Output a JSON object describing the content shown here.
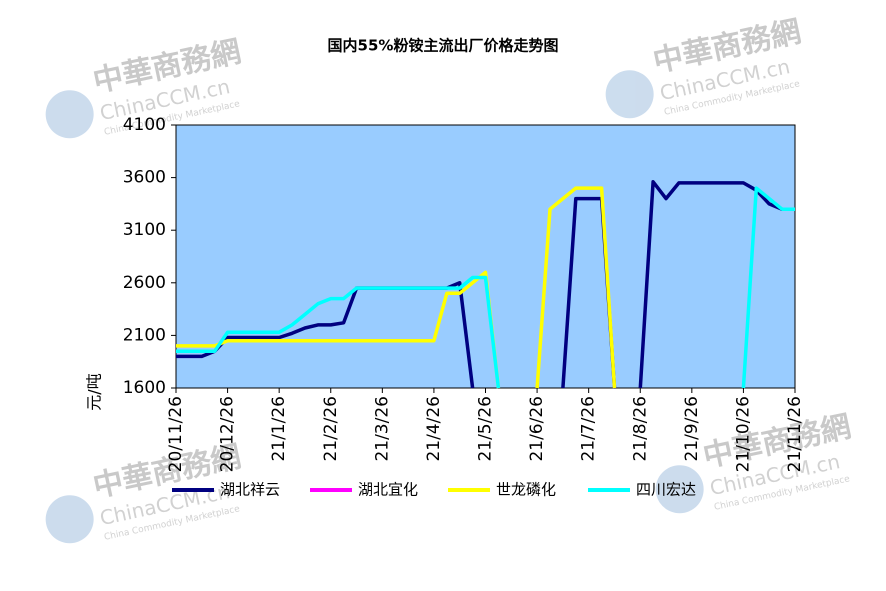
{
  "chart_data": {
    "type": "line",
    "title": "国内55%粉铵主流出厂价格走势图",
    "y_label": "元/吨",
    "watermark": {
      "name": "中華商務網",
      "site": "ChinaCCM.cn",
      "tagline": "China Commodity Marketplace"
    },
    "categories": [
      "20/11/26",
      null,
      null,
      null,
      "20/12/26",
      null,
      null,
      null,
      "21/1/26",
      null,
      null,
      null,
      "21/2/26",
      null,
      null,
      null,
      "21/3/26",
      null,
      null,
      null,
      "21/4/26",
      null,
      null,
      null,
      "21/5/26",
      null,
      null,
      null,
      "21/6/26",
      null,
      null,
      null,
      "21/7/26",
      null,
      null,
      null,
      "21/8/26",
      null,
      null,
      null,
      "21/9/26",
      null,
      null,
      null,
      "21/10/26",
      null,
      null,
      null,
      "21/11/26"
    ],
    "ylim": [
      1600,
      4100
    ],
    "yticks": [
      1600,
      2100,
      2600,
      3100,
      3600,
      4100
    ],
    "grid": false,
    "plot_color": "#99ccff",
    "series": [
      {
        "name": "湖北祥云",
        "color": "#000080",
        "values": [
          1900,
          1900,
          1900,
          1950,
          2080,
          2080,
          2080,
          2080,
          2080,
          2120,
          2170,
          2200,
          2200,
          2220,
          2550,
          2550,
          2550,
          2550,
          2550,
          2550,
          2550,
          2550,
          2600,
          1600,
          null,
          null,
          null,
          null,
          null,
          null,
          1600,
          3400,
          3400,
          3400,
          1600,
          null,
          1600,
          3560,
          3400,
          3550,
          3550,
          3550,
          3550,
          3550,
          3550,
          3480,
          3350,
          3300,
          3300
        ]
      },
      {
        "name": "湖北宜化",
        "color": "#ff00ff",
        "values": [
          null,
          null,
          null,
          null,
          null,
          null,
          null,
          null,
          null,
          null,
          null,
          null,
          null,
          null,
          null,
          null,
          null,
          null,
          null,
          null,
          null,
          null,
          null,
          null,
          null,
          null,
          null,
          null,
          null,
          null,
          null,
          null,
          null,
          null,
          null,
          null,
          null,
          null,
          null,
          null,
          null,
          null,
          null,
          null,
          null,
          null,
          null,
          null,
          null
        ]
      },
      {
        "name": "世龙磷化",
        "color": "#ffff00",
        "values": [
          2000,
          2000,
          2000,
          2000,
          2050,
          2050,
          2050,
          2050,
          2050,
          2050,
          2050,
          2050,
          2050,
          2050,
          2050,
          2050,
          2050,
          2050,
          2050,
          2050,
          2050,
          2500,
          2500,
          2600,
          2700,
          1600,
          null,
          null,
          1600,
          3300,
          3400,
          3500,
          3500,
          3500,
          1600,
          null,
          null,
          null,
          null,
          null,
          null,
          null,
          null,
          null,
          null,
          null,
          null,
          null,
          null
        ]
      },
      {
        "name": "四川宏达",
        "color": "#00ffff",
        "values": [
          1950,
          1950,
          1950,
          1950,
          2130,
          2130,
          2130,
          2130,
          2130,
          2200,
          2300,
          2400,
          2450,
          2450,
          2550,
          2550,
          2550,
          2550,
          2550,
          2550,
          2550,
          2550,
          2550,
          2650,
          2650,
          1600,
          null,
          null,
          null,
          null,
          null,
          null,
          null,
          null,
          null,
          null,
          null,
          null,
          null,
          null,
          null,
          null,
          null,
          null,
          1600,
          3500,
          3400,
          3300,
          3300
        ]
      }
    ]
  }
}
